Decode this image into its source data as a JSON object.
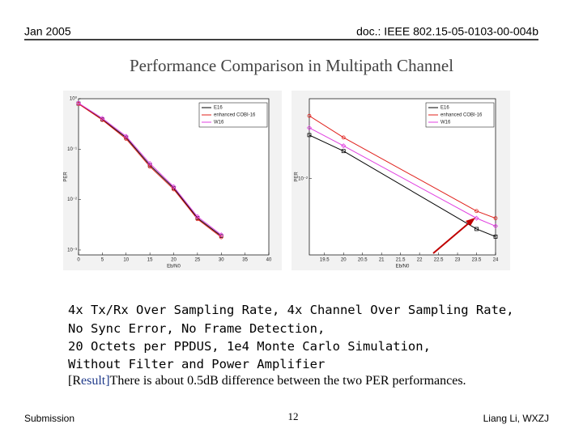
{
  "header": {
    "date": "Jan 2005",
    "doc_id": "doc.: IEEE 802.15-05-0103-00-004b"
  },
  "title": "Performance Comparison in Multipath Channel",
  "chart_data": [
    {
      "type": "line",
      "x_label": "Eb/N0",
      "y_label": "PER",
      "log_y": true,
      "grid": false,
      "legend": "upper right",
      "x": [
        0,
        5,
        10,
        15,
        20,
        25,
        30
      ],
      "xlim": [
        0,
        40
      ],
      "xticks": [
        0,
        5,
        10,
        15,
        20,
        25,
        30,
        35,
        40
      ],
      "ylim": [
        0.0008,
        1
      ],
      "yticks": [
        {
          "value": 1,
          "label": "10⁰"
        },
        {
          "value": 0.1,
          "label": "10⁻¹"
        },
        {
          "value": 0.01,
          "label": "10⁻²"
        },
        {
          "value": 0.001,
          "label": "10⁻³"
        }
      ],
      "series": [
        {
          "name": "E16",
          "color": "#000000",
          "marker": "square",
          "values": [
            0.8,
            0.39,
            0.17,
            0.048,
            0.017,
            0.0043,
            0.0019
          ]
        },
        {
          "name": "enhanced COBI-16",
          "color": "#e0201b",
          "marker": "circle",
          "values": [
            0.79,
            0.38,
            0.16,
            0.045,
            0.016,
            0.0041,
            0.0018
          ]
        },
        {
          "name": "W16",
          "color": "#e040e0",
          "marker": "diamond",
          "values": [
            0.82,
            0.41,
            0.18,
            0.052,
            0.018,
            0.0046,
            0.002
          ]
        }
      ]
    },
    {
      "type": "line",
      "x_label": "Eb/N0",
      "y_label": "PER",
      "log_y": true,
      "grid": false,
      "legend": "upper right",
      "x": [
        19.1,
        20,
        23.5,
        24
      ],
      "xlim": [
        19.1,
        24
      ],
      "xticks": [
        19.5,
        20,
        20.5,
        21,
        21.5,
        22,
        22.5,
        23,
        23.5,
        24
      ],
      "ylim": [
        0.0035,
        0.03
      ],
      "yticks": [
        {
          "value": 0.01,
          "label": "10⁻²"
        }
      ],
      "series": [
        {
          "name": "E16",
          "color": "#000000",
          "marker": "square",
          "values": [
            0.0182,
            0.0146,
            0.005,
            0.0045
          ]
        },
        {
          "name": "enhanced COBI-16",
          "color": "#e0201b",
          "marker": "circle",
          "values": [
            0.0237,
            0.0176,
            0.0064,
            0.0058
          ]
        },
        {
          "name": "W16",
          "color": "#e040e0",
          "marker": "diamond",
          "values": [
            0.0201,
            0.0157,
            0.0058,
            0.0052
          ]
        }
      ]
    }
  ],
  "body": [
    "4x Tx/Rx Over Sampling Rate, 4x Channel Over Sampling Rate,",
    "No Sync Error, No Frame Detection,",
    "20 Octets per PPDUS, 1e4 Monte Carlo Simulation,",
    "Without Filter and Power Amplifier"
  ],
  "result": {
    "tag": "[Result]",
    "text": "There is about 0.5dB difference between the two PER performances."
  },
  "footer": {
    "left": "Submission",
    "page": "12",
    "right": "Liang Li, WXZJ"
  }
}
